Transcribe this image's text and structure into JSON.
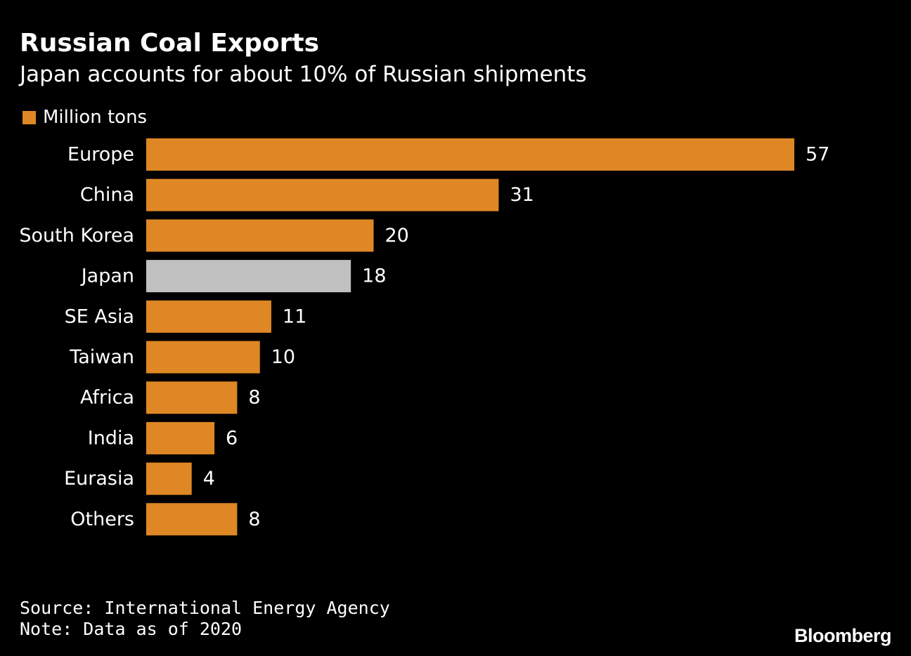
{
  "chart_data": {
    "type": "bar",
    "orientation": "horizontal",
    "title": "Russian Coal Exports",
    "subtitle": "Japan accounts for about 10% of Russian shipments",
    "legend": [
      {
        "label": "Million tons",
        "color": "#de8724"
      }
    ],
    "categories": [
      "Europe",
      "China",
      "South Korea",
      "Japan",
      "SE Asia",
      "Taiwan",
      "Africa",
      "India",
      "Eurasia",
      "Others"
    ],
    "values": [
      57,
      31,
      20,
      18,
      11,
      10,
      8,
      6,
      4,
      8
    ],
    "bar_colors": [
      "#de8724",
      "#de8724",
      "#de8724",
      "#c0c0c0",
      "#de8724",
      "#de8724",
      "#de8724",
      "#de8724",
      "#de8724",
      "#de8724"
    ],
    "highlight_category": "Japan",
    "xlim": [
      0,
      57
    ],
    "xlabel": "",
    "ylabel": "",
    "grid": false
  },
  "footer": {
    "source": "Source: International Energy Agency",
    "note": "Note: Data as of 2020",
    "brand": "Bloomberg"
  },
  "colors": {
    "background": "#000000",
    "accent": "#de8724",
    "highlight": "#c0c0c0",
    "text": "#ffffff"
  }
}
